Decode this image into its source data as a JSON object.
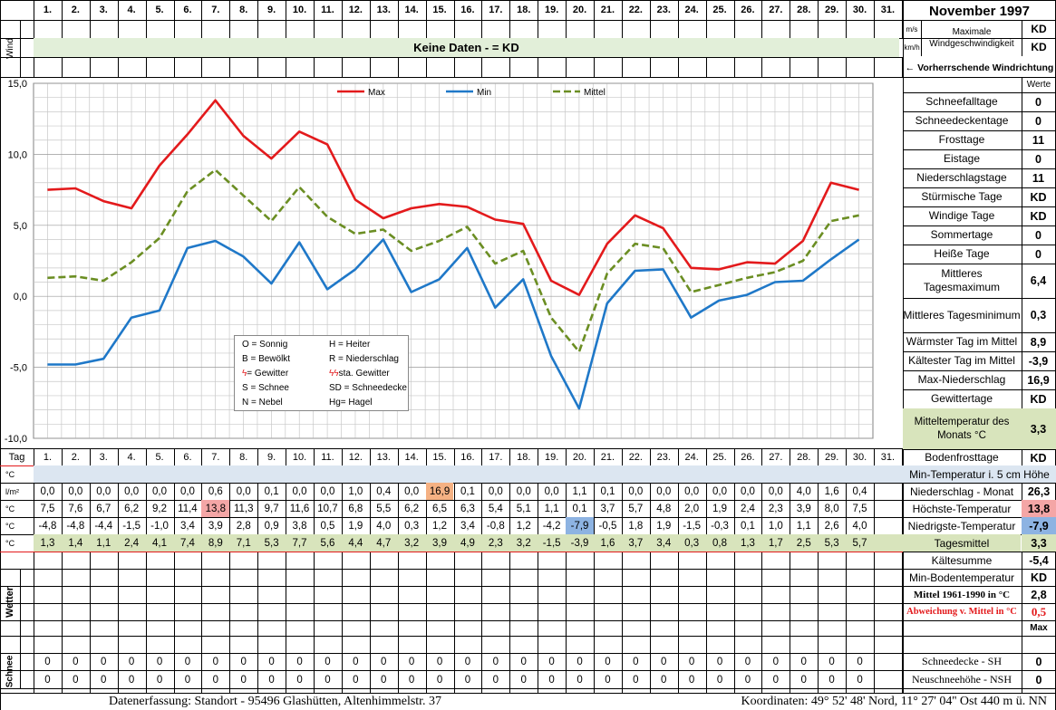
{
  "title": "November 1997",
  "days_header": [
    "1.",
    "2.",
    "3.",
    "4.",
    "5.",
    "6.",
    "7.",
    "8.",
    "9.",
    "10.",
    "11.",
    "12.",
    "13.",
    "14.",
    "15.",
    "16.",
    "17.",
    "18.",
    "19.",
    "20.",
    "21.",
    "22.",
    "23.",
    "24.",
    "25.",
    "26.",
    "27.",
    "28.",
    "29.",
    "30.",
    "31."
  ],
  "wind": {
    "side_label": "Wind",
    "no_data_text": "Keine Daten -  = KD",
    "unit_ms": "m/s",
    "unit_kmh": "km/h",
    "max_label": "Maximale Windgeschwindigkeit",
    "max_ms": "KD",
    "max_kmh": "KD",
    "direction_label": "← Vorherrschende Windrichtung"
  },
  "chart_data": {
    "type": "line",
    "categories": [
      "1",
      "2",
      "3",
      "4",
      "5",
      "6",
      "7",
      "8",
      "9",
      "10",
      "11",
      "12",
      "13",
      "14",
      "15",
      "16",
      "17",
      "18",
      "19",
      "20",
      "21",
      "22",
      "23",
      "24",
      "25",
      "26",
      "27",
      "28",
      "29",
      "30"
    ],
    "series": [
      {
        "name": "Max",
        "color": "#e31a1c",
        "style": "solid",
        "values": [
          7.5,
          7.6,
          6.7,
          6.2,
          9.2,
          11.4,
          13.8,
          11.3,
          9.7,
          11.6,
          10.7,
          6.8,
          5.5,
          6.2,
          6.5,
          6.3,
          5.4,
          5.1,
          1.1,
          0.1,
          3.7,
          5.7,
          4.8,
          2.0,
          1.9,
          2.4,
          2.3,
          3.9,
          8.0,
          7.5
        ]
      },
      {
        "name": "Min",
        "color": "#1f78c8",
        "style": "solid",
        "values": [
          -4.8,
          -4.8,
          -4.4,
          -1.5,
          -1.0,
          3.4,
          3.9,
          2.8,
          0.9,
          3.8,
          0.5,
          1.9,
          4.0,
          0.3,
          1.2,
          3.4,
          -0.8,
          1.2,
          -4.2,
          -7.9,
          -0.5,
          1.8,
          1.9,
          -1.5,
          -0.3,
          0.1,
          1.0,
          1.1,
          2.6,
          4.0
        ]
      },
      {
        "name": "Mittel",
        "color": "#6b8e23",
        "style": "dashed",
        "values": [
          1.3,
          1.4,
          1.1,
          2.4,
          4.1,
          7.4,
          8.9,
          7.1,
          5.3,
          7.7,
          5.6,
          4.4,
          4.7,
          3.2,
          3.9,
          4.9,
          2.3,
          3.2,
          -1.5,
          -3.9,
          1.6,
          3.7,
          3.4,
          0.3,
          0.8,
          1.3,
          1.7,
          2.5,
          5.3,
          5.7
        ]
      }
    ],
    "y_ticks": [
      "15,0",
      "10,0",
      "5,0",
      "0,0",
      "-5,0",
      "-10,0"
    ],
    "ylim": [
      -10,
      15
    ],
    "grid": true,
    "legend_position": "top"
  },
  "weather_legend": [
    {
      "code": "O = Sonnig",
      "code2": "H = Heiter"
    },
    {
      "code": "B = Bewölkt",
      "code2": "R = Niederschlag"
    },
    {
      "code": "= Gewitter",
      "code2": "sta. Gewitter"
    },
    {
      "code": "S = Schnee",
      "code2": "SD = Schneedecke"
    },
    {
      "code": "N = Nebel",
      "code2": "Hg= Hagel"
    }
  ],
  "right_stats_header": "Werte",
  "right_stats": [
    {
      "label": "Schneefalltage",
      "value": "0"
    },
    {
      "label": "Schneedeckentage",
      "value": "0"
    },
    {
      "label": "Frosttage",
      "value": "11"
    },
    {
      "label": "Eistage",
      "value": "0"
    },
    {
      "label": "Niederschlagstage",
      "value": "11"
    },
    {
      "label": "Stürmische Tage",
      "value": "KD"
    },
    {
      "label": "Windige Tage",
      "value": "KD"
    },
    {
      "label": "Sommertage",
      "value": "0"
    },
    {
      "label": "Heiße Tage",
      "value": "0"
    },
    {
      "label": "Mittleres Tagesmaximum",
      "value": "6,4"
    },
    {
      "label": "Mittleres Tagesminimum",
      "value": "0,3"
    },
    {
      "label": "Wärmster Tag im Mittel",
      "value": "8,9"
    },
    {
      "label": "Kältester Tag im Mittel",
      "value": "-3,9"
    },
    {
      "label": "Max-Niederschlag",
      "value": "16,9"
    },
    {
      "label": "Gewittertage",
      "value": "KD"
    },
    {
      "label": "Mitteltemperatur des Monats °C",
      "value": "3,3"
    },
    {
      "label": "Bodenfrosttage",
      "value": "KD"
    }
  ],
  "table": {
    "tag_label": "Tag",
    "ground_label": "Min-Temperatur i. 5 cm Höhe",
    "rows": [
      {
        "unit": "l/m²",
        "label": "Niederschlag - Monat",
        "total": "26,3",
        "values": [
          "0,0",
          "0,0",
          "0,0",
          "0,0",
          "0,0",
          "0,0",
          "0,6",
          "0,0",
          "0,1",
          "0,0",
          "0,0",
          "1,0",
          "0,4",
          "0,0",
          "16,9",
          "0,1",
          "0,0",
          "0,0",
          "0,0",
          "1,1",
          "0,1",
          "0,0",
          "0,0",
          "0,0",
          "0,0",
          "0,0",
          "0,0",
          "4,0",
          "1,6",
          "0,4",
          ""
        ]
      },
      {
        "unit": "°C",
        "label": "Höchste-Temperatur",
        "total": "13,8",
        "values": [
          "7,5",
          "7,6",
          "6,7",
          "6,2",
          "9,2",
          "11,4",
          "13,8",
          "11,3",
          "9,7",
          "11,6",
          "10,7",
          "6,8",
          "5,5",
          "6,2",
          "6,5",
          "6,3",
          "5,4",
          "5,1",
          "1,1",
          "0,1",
          "3,7",
          "5,7",
          "4,8",
          "2,0",
          "1,9",
          "2,4",
          "2,3",
          "3,9",
          "8,0",
          "7,5",
          ""
        ]
      },
      {
        "unit": "°C",
        "label": "Niedrigste-Temperatur",
        "total": "-7,9",
        "values": [
          "-4,8",
          "-4,8",
          "-4,4",
          "-1,5",
          "-1,0",
          "3,4",
          "3,9",
          "2,8",
          "0,9",
          "3,8",
          "0,5",
          "1,9",
          "4,0",
          "0,3",
          "1,2",
          "3,4",
          "-0,8",
          "1,2",
          "-4,2",
          "-7,9",
          "-0,5",
          "1,8",
          "1,9",
          "-1,5",
          "-0,3",
          "0,1",
          "1,0",
          "1,1",
          "2,6",
          "4,0",
          ""
        ]
      },
      {
        "unit": "°C",
        "label": "Tagesmittel",
        "total": "3,3",
        "values": [
          "1,3",
          "1,4",
          "1,1",
          "2,4",
          "4,1",
          "7,4",
          "8,9",
          "7,1",
          "5,3",
          "7,7",
          "5,6",
          "4,4",
          "4,7",
          "3,2",
          "3,9",
          "4,9",
          "2,3",
          "3,2",
          "-1,5",
          "-3,9",
          "1,6",
          "3,7",
          "3,4",
          "0,3",
          "0,8",
          "1,3",
          "1,7",
          "2,5",
          "5,3",
          "5,7",
          ""
        ]
      }
    ],
    "highlights": {
      "max_precip": "#f5b183",
      "max_temp": "#f4a6a6",
      "min_temp": "#8db3e2",
      "mean_row": "#d8e4bc",
      "ground_row": "#dce6f1"
    }
  },
  "extra_stats": [
    {
      "label": "Kältesumme",
      "value": "-5,4"
    },
    {
      "label": "Min-Bodentemperatur",
      "value": "KD"
    },
    {
      "label": "Mittel 1961-1990 in °C",
      "value": "2,8"
    },
    {
      "label": "Abweichung v. Mittel in °C",
      "value": "0,5"
    },
    {
      "label": "",
      "value": "Max"
    }
  ],
  "weather_side_label": "Wetter",
  "snow": {
    "side_label": "Schnee",
    "rows": [
      {
        "label": "Schneedecke -  SH",
        "total": "0",
        "values": [
          "0",
          "0",
          "0",
          "0",
          "0",
          "0",
          "0",
          "0",
          "0",
          "0",
          "0",
          "0",
          "0",
          "0",
          "0",
          "0",
          "0",
          "0",
          "0",
          "0",
          "0",
          "0",
          "0",
          "0",
          "0",
          "0",
          "0",
          "0",
          "0",
          "0",
          ""
        ]
      },
      {
        "label": "Neuschneehöhe - NSH",
        "total": "0",
        "values": [
          "0",
          "0",
          "0",
          "0",
          "0",
          "0",
          "0",
          "0",
          "0",
          "0",
          "0",
          "0",
          "0",
          "0",
          "0",
          "0",
          "0",
          "0",
          "0",
          "0",
          "0",
          "0",
          "0",
          "0",
          "0",
          "0",
          "0",
          "0",
          "0",
          "0",
          ""
        ]
      }
    ]
  },
  "footer": {
    "left": "Datenerfassung:  Standort -  95496  Glashütten, Altenhimmelstr. 37",
    "right": "Koordinaten:  49° 52' 48' Nord,  11° 27' 04'' Ost   440 m ü. NN"
  }
}
